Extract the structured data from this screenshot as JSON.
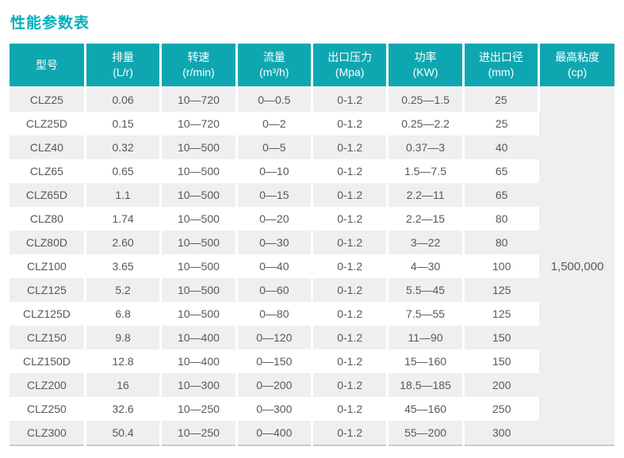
{
  "title": "性能参数表",
  "colors": {
    "title_text": "#00b0ba",
    "header_bg": "#0ea7b1",
    "header_text": "#ffffff",
    "row_bg": "#ffffff",
    "row_alt_bg": "#efefef",
    "body_text": "#58585a",
    "bottom_border": "#c9c9c9"
  },
  "table": {
    "columns": [
      {
        "key": "model",
        "label": "型号",
        "unit": ""
      },
      {
        "key": "displacement",
        "label": "排量",
        "unit": "(L/r)"
      },
      {
        "key": "speed",
        "label": "转速",
        "unit": "(r/min)"
      },
      {
        "key": "flow",
        "label": "流量",
        "unit": "(m³/h)"
      },
      {
        "key": "outlet-pressure",
        "label": "出口压力",
        "unit": "(Mpa)"
      },
      {
        "key": "power",
        "label": "功率",
        "unit": "(KW)"
      },
      {
        "key": "port-diameter",
        "label": "进出口径",
        "unit": "(mm)"
      },
      {
        "key": "max-viscosity",
        "label": "最高粘度",
        "unit": "(cp)"
      }
    ],
    "rows": [
      [
        "CLZ25",
        "0.06",
        "10—720",
        "0—0.5",
        "0-1.2",
        "0.25—1.5",
        "25"
      ],
      [
        "CLZ25D",
        "0.15",
        "10—720",
        "0—2",
        "0-1.2",
        "0.25—2.2",
        "25"
      ],
      [
        "CLZ40",
        "0.32",
        "10—500",
        "0—5",
        "0-1.2",
        "0.37—3",
        "40"
      ],
      [
        "CLZ65",
        "0.65",
        "10—500",
        "0—10",
        "0-1.2",
        "1.5—7.5",
        "65"
      ],
      [
        "CLZ65D",
        "1.1",
        "10—500",
        "0—15",
        "0-1.2",
        "2.2—11",
        "65"
      ],
      [
        "CLZ80",
        "1.74",
        "10—500",
        "0—20",
        "0-1.2",
        "2.2—15",
        "80"
      ],
      [
        "CLZ80D",
        "2.60",
        "10—500",
        "0—30",
        "0-1.2",
        "3—22",
        "80"
      ],
      [
        "CLZ100",
        "3.65",
        "10—500",
        "0—40",
        "0-1.2",
        "4—30",
        "100"
      ],
      [
        "CLZ125",
        "5.2",
        "10—500",
        "0—60",
        "0-1.2",
        "5.5—45",
        "125"
      ],
      [
        "CLZ125D",
        "6.8",
        "10—500",
        "0—80",
        "0-1.2",
        "7.5—55",
        "125"
      ],
      [
        "CLZ150",
        "9.8",
        "10—400",
        "0—120",
        "0-1.2",
        "11—90",
        "150"
      ],
      [
        "CLZ150D",
        "12.8",
        "10—400",
        "0—150",
        "0-1.2",
        "15—160",
        "150"
      ],
      [
        "CLZ200",
        "16",
        "10—300",
        "0—200",
        "0-1.2",
        "18.5—185",
        "200"
      ],
      [
        "CLZ250",
        "32.6",
        "10—250",
        "0—300",
        "0-1.2",
        "45—160",
        "250"
      ],
      [
        "CLZ300",
        "50.4",
        "10—250",
        "0—400",
        "0-1.2",
        "55—200",
        "300"
      ]
    ],
    "merged_cell": {
      "column": "最高粘度(cp)",
      "value": "1,500,000",
      "rowspan": 15
    }
  }
}
